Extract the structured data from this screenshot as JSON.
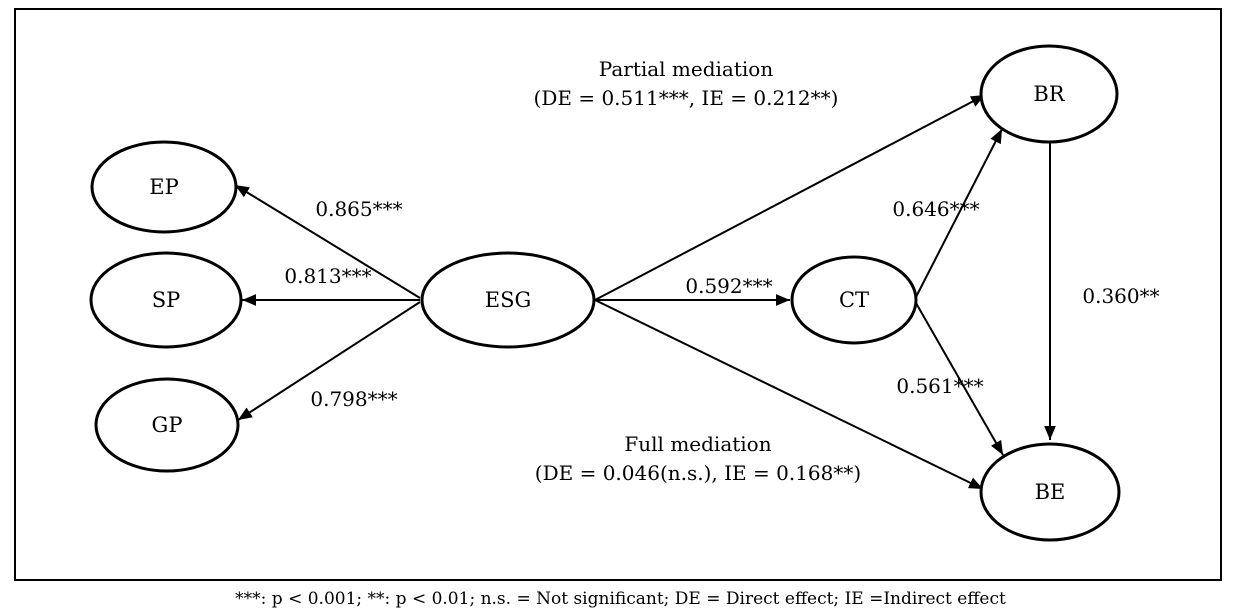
{
  "nodes": {
    "ep": "EP",
    "sp": "SP",
    "gp": "GP",
    "esg": "ESG",
    "ct": "CT",
    "br": "BR",
    "be": "BE"
  },
  "paths": {
    "esg_ep": "0.865***",
    "esg_sp": "0.813***",
    "esg_gp": "0.798***",
    "esg_ct": "0.592***",
    "ct_br": "0.646***",
    "ct_be": "0.561***",
    "br_be": "0.360**"
  },
  "mediation": {
    "partial_title": "Partial mediation",
    "partial_detail": "(DE = 0.511***, IE = 0.212**)",
    "full_title": "Full mediation",
    "full_detail": "(DE = 0.046(n.s.), IE = 0.168**)"
  },
  "footnote": "***: p < 0.001; **: p < 0.01; n.s. = Not significant; DE = Direct effect; IE =Indirect effect"
}
